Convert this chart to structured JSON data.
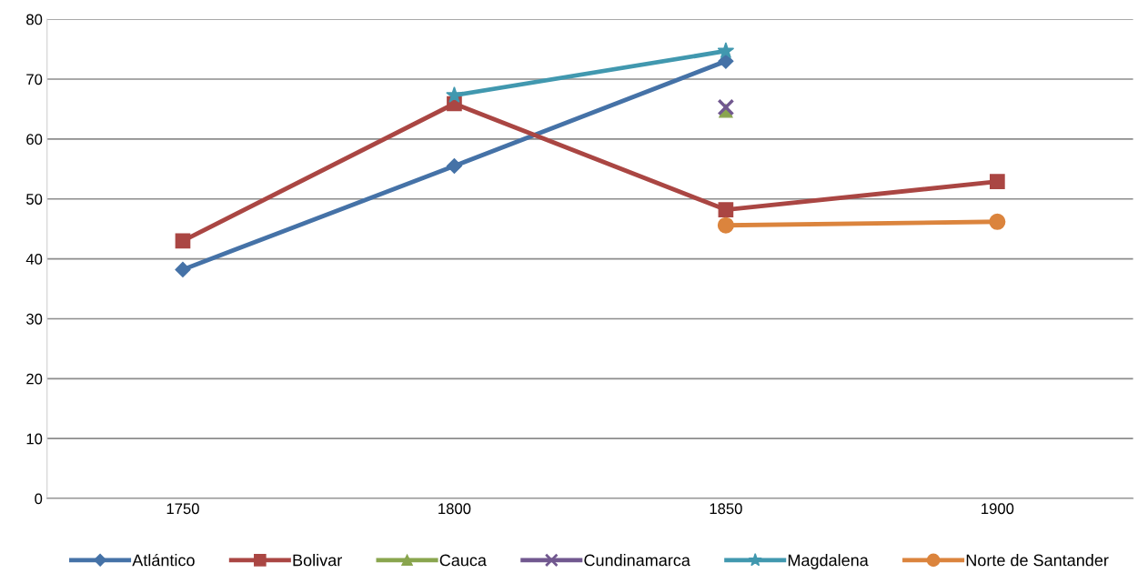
{
  "chart_data": {
    "type": "line",
    "categories": [
      "1750",
      "1800",
      "1850",
      "1900"
    ],
    "series": [
      {
        "name": "Atlántico",
        "color": "#4572a7",
        "marker": "diamond",
        "values": [
          38.2,
          55.5,
          73.0,
          null
        ]
      },
      {
        "name": "Bolivar",
        "color": "#aa4643",
        "marker": "square",
        "values": [
          43.0,
          65.9,
          48.2,
          52.9
        ]
      },
      {
        "name": "Cauca",
        "color": "#89a54e",
        "marker": "triangle",
        "values": [
          null,
          null,
          64.7,
          null
        ]
      },
      {
        "name": "Cundinamarca",
        "color": "#71588f",
        "marker": "cross",
        "values": [
          null,
          null,
          65.3,
          null
        ]
      },
      {
        "name": "Magdalena",
        "color": "#4198af",
        "marker": "star",
        "values": [
          null,
          67.3,
          74.7,
          null
        ]
      },
      {
        "name": "Norte de Santander",
        "color": "#db843d",
        "marker": "circle",
        "values": [
          null,
          null,
          45.6,
          46.2
        ]
      }
    ],
    "ylim": [
      0,
      80
    ],
    "yticks": [
      0,
      10,
      20,
      30,
      40,
      50,
      60,
      70,
      80
    ],
    "grid": "y",
    "legend": "bottom",
    "line_style": "solid"
  }
}
